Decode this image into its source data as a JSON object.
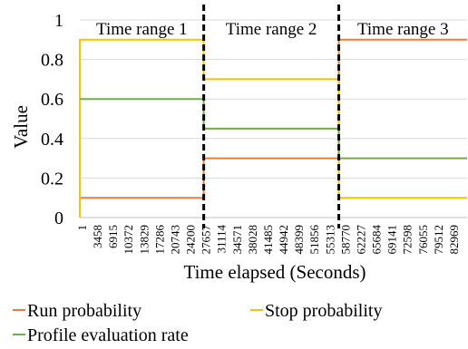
{
  "chart_data": {
    "type": "line",
    "title": "",
    "xlabel": "Time elapsed (Seconds)",
    "ylabel": "Value",
    "ylim": [
      0,
      1
    ],
    "xlim": [
      1,
      86426
    ],
    "y_ticks": [
      "0",
      "0.2",
      "0.4",
      "0.6",
      "0.8",
      "1"
    ],
    "x_tick_labels": [
      "1",
      "3458",
      "6915",
      "10372",
      "13829",
      "17286",
      "20743",
      "24200",
      "27657",
      "31114",
      "34571",
      "38028",
      "41485",
      "44942",
      "48399",
      "51856",
      "55313",
      "58770",
      "62227",
      "65684",
      "69141",
      "72598",
      "76055",
      "79512",
      "82969"
    ],
    "grid": "horizontal",
    "step_lines": true,
    "legend_position": "bottom",
    "series": [
      {
        "name": "Run probability",
        "color": "#ED7D31",
        "x": [
          1,
          27657,
          27657,
          57800,
          57800,
          86426
        ],
        "y": [
          0.1,
          0.1,
          0.3,
          0.3,
          0.9,
          0.9
        ]
      },
      {
        "name": "Stop probability",
        "color": "#FFC000",
        "x": [
          1,
          1,
          27657,
          27657,
          57800,
          57800,
          86426
        ],
        "y": [
          0,
          0.9,
          0.9,
          0.7,
          0.7,
          0.1,
          0.1
        ]
      },
      {
        "name": "Profile evaluation rate",
        "color": "#70AD47",
        "x": [
          1,
          27657,
          27657,
          57800,
          57800,
          86426
        ],
        "y": [
          0.6,
          0.6,
          0.45,
          0.45,
          0.3,
          0.3
        ]
      }
    ],
    "annotations": [
      {
        "label": "Time range 1",
        "x_start": 1,
        "x_end": 27657
      },
      {
        "label": "Time range 2",
        "x_start": 27657,
        "x_end": 57800
      },
      {
        "label": "Time range 3",
        "x_start": 57800,
        "x_end": 86426
      }
    ],
    "divider_x": [
      27657,
      57800
    ]
  }
}
